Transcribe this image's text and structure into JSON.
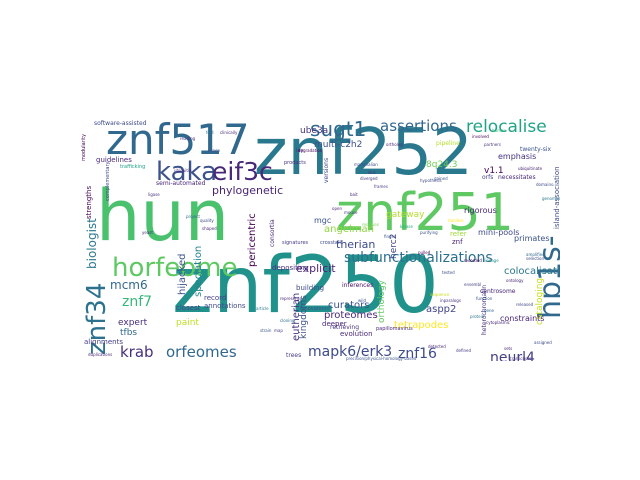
{
  "words": [
    {
      "id": "hun",
      "text": "hun",
      "color": "#4ac16d"
    },
    {
      "id": "znf250",
      "text": "znf250",
      "color": "#21918c"
    },
    {
      "id": "znf252",
      "text": "znf252",
      "color": "#2a788e"
    },
    {
      "id": "znf251",
      "text": "znf251",
      "color": "#5ec962"
    },
    {
      "id": "znf517",
      "text": "znf517",
      "color": "#31688e"
    },
    {
      "id": "horfeome",
      "text": "horfeome",
      "color": "#5ec962"
    },
    {
      "id": "kaka",
      "text": "kaka",
      "color": "#3b528b"
    },
    {
      "id": "eif3c",
      "text": "eif3c",
      "color": "#482878"
    },
    {
      "id": "hp1s",
      "text": "hp1s-",
      "color": "#31688e"
    },
    {
      "id": "znf34",
      "text": "znf34",
      "color": "#2c728e"
    },
    {
      "id": "sugt1",
      "text": "sugt1",
      "color": "#31688e"
    },
    {
      "id": "relocalise",
      "text": "relocalise",
      "color": "#20a386"
    },
    {
      "id": "assertions",
      "text": "assertions",
      "color": "#31688e"
    },
    {
      "id": "krab",
      "text": "krab",
      "color": "#472f7d"
    },
    {
      "id": "orfeomes",
      "text": "orfeomes",
      "color": "#31688e"
    },
    {
      "id": "subfunctionalizations",
      "text": "subfunctionalizations",
      "color": "#2d708e"
    },
    {
      "id": "mapk6erk3",
      "text": "mapk6/erk3",
      "color": "#3e4a89"
    },
    {
      "id": "znf16",
      "text": "znf16",
      "color": "#3e4a89"
    },
    {
      "id": "neurl4",
      "text": "neurl4",
      "color": "#433e85"
    },
    {
      "id": "znf7",
      "text": "znf7",
      "color": "#35b779"
    },
    {
      "id": "mcm6",
      "text": "mcm6",
      "color": "#31688e"
    },
    {
      "id": "biologist",
      "text": "biologist",
      "color": "#2a788e"
    },
    {
      "id": "phylogenetic",
      "text": "phylogenetic",
      "color": "#482475"
    },
    {
      "id": "therian",
      "text": "therian",
      "color": "#3e4a89"
    },
    {
      "id": "explicit",
      "text": "explicit",
      "color": "#481f70"
    },
    {
      "id": "tetrapodes",
      "text": "tetrapodes",
      "color": "#fde725"
    },
    {
      "id": "curators",
      "text": "curators",
      "color": "#3b528b"
    },
    {
      "id": "proteomes",
      "text": "proteomes",
      "color": "#482878"
    },
    {
      "id": "eutherian",
      "text": "eutherian",
      "color": "#46337e"
    },
    {
      "id": "speciation",
      "text": "speciation",
      "color": "#26828e"
    },
    {
      "id": "hijacked",
      "text": "hijacked",
      "color": "#3b528b"
    },
    {
      "id": "pericentric",
      "text": "pericentric",
      "color": "#440154"
    },
    {
      "id": "angelman",
      "text": "angelman",
      "color": "#90d743"
    },
    {
      "id": "aspp2",
      "text": "aspp2",
      "color": "#414487"
    },
    {
      "id": "colocalisation",
      "text": "colocalisation",
      "color": "#2a788e"
    },
    {
      "id": "cataloging",
      "text": "cataloging",
      "color": "#c8e020"
    },
    {
      "id": "gateway",
      "text": "gateway",
      "color": "#b5de2b"
    },
    {
      "id": "multic2h2",
      "text": "multi-c2h2",
      "color": "#3b528b"
    },
    {
      "id": "ube3a",
      "text": "ube3a",
      "color": "#46337e"
    },
    {
      "id": "8q243",
      "text": "8q24.3",
      "color": "#6ece58"
    },
    {
      "id": "kingdoms",
      "text": "kingdoms",
      "color": "#3b528b"
    },
    {
      "id": "orthology",
      "text": "orthology",
      "color": "#5ec962"
    },
    {
      "id": "expert",
      "text": "expert",
      "color": "#472d7b"
    },
    {
      "id": "paint",
      "text": "paint",
      "color": "#c2df23"
    },
    {
      "id": "tfbs",
      "text": "tfbs",
      "color": "#31688e"
    },
    {
      "id": "herc2",
      "text": "herc2",
      "color": "#414487"
    },
    {
      "id": "depositing",
      "text": "depositing",
      "color": "#46337e"
    },
    {
      "id": "building",
      "text": "building",
      "color": "#3e4a89"
    },
    {
      "id": "inferences",
      "text": "inferences",
      "color": "#471063"
    },
    {
      "id": "deeper",
      "text": "deeper",
      "color": "#482878"
    },
    {
      "id": "evolution",
      "text": "evolution",
      "color": "#482878"
    },
    {
      "id": "retrieving",
      "text": "retrieving",
      "color": "#46337e"
    },
    {
      "id": "alignments",
      "text": "alignments",
      "color": "#433e85"
    },
    {
      "id": "closest",
      "text": "closest",
      "color": "#414487"
    },
    {
      "id": "annotations",
      "text": "annotations",
      "color": "#3e4a89"
    },
    {
      "id": "primates",
      "text": "primates",
      "color": "#3b528b"
    },
    {
      "id": "minipools",
      "text": "mini-pools",
      "color": "#3e4a89"
    },
    {
      "id": "rigorous",
      "text": "rigorous",
      "color": "#482878"
    },
    {
      "id": "v11",
      "text": "v1.1",
      "color": "#440154"
    },
    {
      "id": "emphasis",
      "text": "emphasis",
      "color": "#46337e"
    },
    {
      "id": "constraints",
      "text": "constraints",
      "color": "#482475"
    },
    {
      "id": "twentysix",
      "text": "twenty-six",
      "color": "#3b528b"
    },
    {
      "id": "islandassociation",
      "text": "island-association",
      "color": "#3e4a89"
    },
    {
      "id": "softwareassisted",
      "text": "software-assisted",
      "color": "#3e4a89"
    },
    {
      "id": "guidelines",
      "text": "guidelines",
      "color": "#482878"
    },
    {
      "id": "semiautomated",
      "text": "semi-automated",
      "color": "#482878"
    },
    {
      "id": "strengths",
      "text": "strengths",
      "color": "#440154"
    },
    {
      "id": "record",
      "text": "record",
      "color": "#433e85"
    },
    {
      "id": "mgc",
      "text": "mgc",
      "color": "#3b528b"
    },
    {
      "id": "znf",
      "text": "znf",
      "color": "#482878"
    },
    {
      "id": "refer",
      "text": "refer",
      "color": "#a0da39"
    },
    {
      "id": "pipeline",
      "text": "pipeline",
      "color": "#b5de2b"
    },
    {
      "id": "versions",
      "text": "versions",
      "color": "#3e4a89"
    },
    {
      "id": "orfs",
      "text": "orfs",
      "color": "#414487"
    },
    {
      "id": "necessitates",
      "text": "necessitates",
      "color": "#482878"
    },
    {
      "id": "trees",
      "text": "trees",
      "color": "#433e85"
    },
    {
      "id": "papillomavirus",
      "text": "papillomavirus",
      "color": "#482475"
    },
    {
      "id": "crosstalk",
      "text": "crosstalk",
      "color": "#3e4a89"
    },
    {
      "id": "consortia",
      "text": "consortia",
      "color": "#482878"
    },
    {
      "id": "signatures",
      "text": "signatures",
      "color": "#433e85"
    },
    {
      "id": "heterochromatin",
      "text": "heterochromatin",
      "color": "#46337e"
    },
    {
      "id": "centrosome",
      "text": "centrosome",
      "color": "#482475"
    },
    {
      "id": "products",
      "text": "products",
      "color": "#472d7b"
    },
    {
      "id": "trafficking",
      "text": "trafficking",
      "color": "#20a386"
    },
    {
      "id": "complementary",
      "text": "complementary",
      "color": "#3e4a89"
    },
    {
      "id": "modularity",
      "text": "modularity",
      "color": "#440154"
    },
    {
      "id": "innovations",
      "text": "innovations",
      "color": "#3b528b"
    },
    {
      "id": "precision",
      "text": "precision/physical-homology-based",
      "color": "#3b528b"
    },
    {
      "id": "duplications",
      "text": "duplications",
      "color": "#482475"
    },
    {
      "id": "gained",
      "text": "gained",
      "color": "#3b528b"
    },
    {
      "id": "genomes",
      "text": "genomes",
      "color": "#2a788e"
    },
    {
      "id": "lay",
      "text": "lay",
      "color": "#472d7b"
    },
    {
      "id": "finger",
      "text": "finger",
      "color": "#3b528b"
    },
    {
      "id": "kinase",
      "text": "kinase",
      "color": "#22a884"
    },
    {
      "id": "purifying",
      "text": "purifying",
      "color": "#3b528b"
    },
    {
      "id": "selection",
      "text": "selection",
      "color": "#3e4a89"
    },
    {
      "id": "clinically",
      "text": "clinically",
      "color": "#482878"
    },
    {
      "id": "quality",
      "text": "quality",
      "color": "#3e4a89"
    },
    {
      "id": "shaped",
      "text": "shaped",
      "color": "#482878"
    },
    {
      "id": "project",
      "text": "project",
      "color": "#31688e"
    },
    {
      "id": "reading",
      "text": "reading",
      "color": "#46337e"
    },
    {
      "id": "frames",
      "text": "frames",
      "color": "#433e85"
    },
    {
      "id": "article",
      "text": "article",
      "color": "#2a788e"
    },
    {
      "id": "cloning",
      "text": "cloning",
      "color": "#2c728e"
    },
    {
      "id": "usage",
      "text": "usage",
      "color": "#3b528b"
    },
    {
      "id": "ubiquitin",
      "text": "ubiquitin",
      "color": "#482878"
    },
    {
      "id": "ligase",
      "text": "ligase",
      "color": "#46337e"
    },
    {
      "id": "residues",
      "text": "residues",
      "color": "#7ad151"
    },
    {
      "id": "assigned",
      "text": "assigned",
      "color": "#3e4a89"
    },
    {
      "id": "domains",
      "text": "domains",
      "color": "#3e4a89"
    },
    {
      "id": "ortholog",
      "text": "ortholog",
      "color": "#482878"
    },
    {
      "id": "lineage",
      "text": "lineage",
      "color": "#21918c"
    },
    {
      "id": "families",
      "text": "families",
      "color": "#fde725"
    },
    {
      "id": "tested",
      "text": "tested",
      "color": "#3e4a89"
    },
    {
      "id": "cytoplasmic",
      "text": "cytoplasmic",
      "color": "#482878"
    },
    {
      "id": "pulled",
      "text": "pulled",
      "color": "#440154"
    },
    {
      "id": "wild",
      "text": "wild",
      "color": "#3b528b"
    },
    {
      "id": "amplified",
      "text": "amplified",
      "color": "#31688e"
    },
    {
      "id": "human",
      "text": "human",
      "color": "#35b779"
    },
    {
      "id": "released",
      "text": "released",
      "color": "#3e4a89"
    },
    {
      "id": "transcripts",
      "text": "transcripts",
      "color": "#46337e"
    },
    {
      "id": "diverged",
      "text": "diverged",
      "color": "#46337e"
    },
    {
      "id": "zinc",
      "text": "zinc",
      "color": "#472d7b"
    },
    {
      "id": "mammalian",
      "text": "mammalian",
      "color": "#3e4a89"
    },
    {
      "id": "bait",
      "text": "bait",
      "color": "#482878"
    },
    {
      "id": "partners",
      "text": "partners",
      "color": "#46337e"
    },
    {
      "id": "ubiquitinate",
      "text": "ubiquitinate",
      "color": "#482475"
    },
    {
      "id": "involved",
      "text": "involved",
      "color": "#440154"
    },
    {
      "id": "recorded",
      "text": "recorded",
      "color": "#440154"
    },
    {
      "id": "ensembl",
      "text": "ensembl",
      "color": "#433e85"
    },
    {
      "id": "inparalogs",
      "text": "inparalogs",
      "color": "#46337e"
    },
    {
      "id": "ontology",
      "text": "ontology",
      "color": "#482878"
    },
    {
      "id": "gene",
      "text": "gene",
      "color": "#31688e"
    },
    {
      "id": "sets",
      "text": "sets",
      "color": "#482475"
    },
    {
      "id": "protein",
      "text": "protein",
      "color": "#2a788e"
    },
    {
      "id": "map",
      "text": "map",
      "color": "#433e85"
    },
    {
      "id": "sequence",
      "text": "sequence",
      "color": "#c8e020"
    },
    {
      "id": "function",
      "text": "function",
      "color": "#3b528b"
    },
    {
      "id": "open",
      "text": "open",
      "color": "#482878"
    },
    {
      "id": "hypothesis",
      "text": "hypothesis",
      "color": "#3e4a89"
    },
    {
      "id": "mouse",
      "text": "mouse",
      "color": "#46337e"
    },
    {
      "id": "represents",
      "text": "represents",
      "color": "#482878"
    },
    {
      "id": "degradation",
      "text": "degradation",
      "color": "#440154"
    },
    {
      "id": "fold",
      "text": "fold",
      "color": "#2a788e"
    },
    {
      "id": "detected",
      "text": "detected",
      "color": "#482878"
    },
    {
      "id": "defined",
      "text": "defined",
      "color": "#433e85"
    },
    {
      "id": "strain",
      "text": "strain",
      "color": "#3b528b"
    },
    {
      "id": "yeast",
      "text": "yeast",
      "color": "#482878"
    }
  ]
}
